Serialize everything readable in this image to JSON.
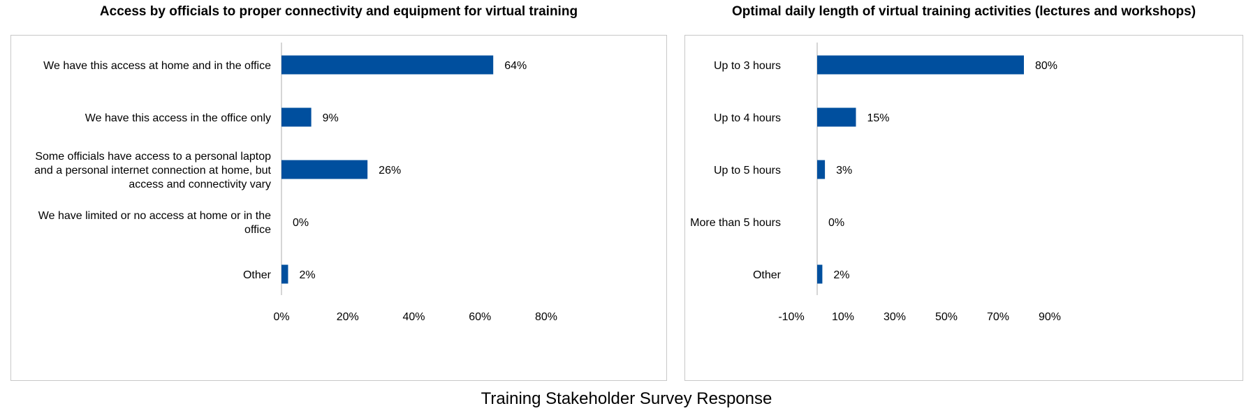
{
  "chart_data": [
    {
      "type": "bar",
      "orientation": "horizontal",
      "title": "Access by officials to proper connectivity and equipment for virtual training",
      "categories": [
        "We have this access at home and in the office",
        "We have this access in the office only",
        "Some officials have access to a personal laptop and a personal internet connection at home, but access and connectivity vary",
        "We have limited or no access at home or in the office",
        "Other"
      ],
      "category_lines": [
        [
          "We have this access at home and in the office"
        ],
        [
          "We have this access in the office only"
        ],
        [
          "Some officials have access to a personal laptop",
          "and a personal internet connection at home, but",
          "access and connectivity vary"
        ],
        [
          "We have limited or no access at home or in the",
          "office"
        ],
        [
          "Other"
        ]
      ],
      "values": [
        64,
        9,
        26,
        0,
        2
      ],
      "value_labels": [
        "64%",
        "9%",
        "26%",
        "0%",
        "2%"
      ],
      "xlim": [
        0,
        80
      ],
      "xticks": [
        0,
        20,
        40,
        60,
        80
      ],
      "xtick_labels": [
        "0%",
        "20%",
        "40%",
        "60%",
        "80%"
      ],
      "bar_color": "#004F9E",
      "grid": false
    },
    {
      "type": "bar",
      "orientation": "horizontal",
      "title": "Optimal daily length of virtual training activities (lectures and workshops)",
      "categories": [
        "Up to 3 hours",
        "Up to 4 hours",
        "Up to 5 hours",
        "More than 5 hours",
        "Other"
      ],
      "category_lines": [
        [
          "Up to 3 hours"
        ],
        [
          "Up to 4 hours"
        ],
        [
          "Up to 5 hours"
        ],
        [
          "More than 5 hours"
        ],
        [
          "Other"
        ]
      ],
      "values": [
        80,
        15,
        3,
        0,
        2
      ],
      "value_labels": [
        "80%",
        "15%",
        "3%",
        "0%",
        "2%"
      ],
      "xlim": [
        -10,
        90
      ],
      "xticks": [
        -10,
        10,
        30,
        50,
        70,
        90
      ],
      "xtick_labels": [
        "-10%",
        "10%",
        "30%",
        "50%",
        "70%",
        "90%"
      ],
      "bar_color": "#004F9E",
      "grid": false
    }
  ],
  "caption": "Training Stakeholder Survey Response"
}
